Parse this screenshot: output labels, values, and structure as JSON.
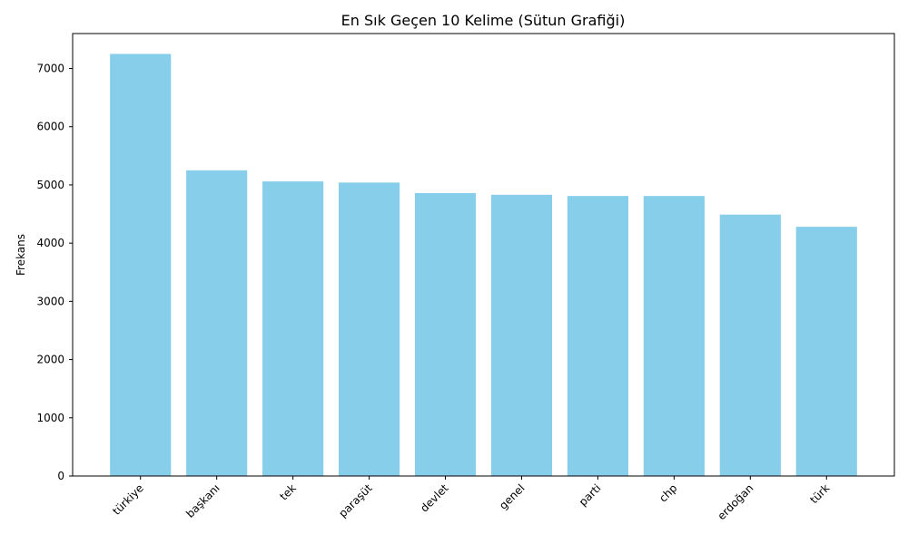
{
  "chart_data": {
    "type": "bar",
    "title": "En Sık Geçen 10 Kelime (Sütun Grafiği)",
    "xlabel": "",
    "ylabel": "Frekans",
    "categories": [
      "türkiye",
      "başkanı",
      "tek",
      "paraşüt",
      "devlet",
      "genel",
      "parti",
      "chp",
      "erdoğan",
      "türk"
    ],
    "values": [
      7250,
      5250,
      5060,
      5040,
      4860,
      4830,
      4810,
      4810,
      4490,
      4280
    ],
    "ylim": [
      0,
      7600
    ],
    "yticks": [
      0,
      1000,
      2000,
      3000,
      4000,
      5000,
      6000,
      7000
    ],
    "bar_color": "#87ceeb",
    "grid": false,
    "legend": "none",
    "xtick_rotation": 45
  }
}
